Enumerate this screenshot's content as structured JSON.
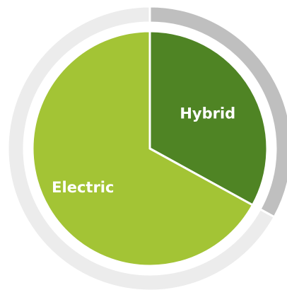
{
  "chart_data": {
    "type": "pie",
    "categories": [
      "Hybrid",
      "Electric"
    ],
    "values": [
      33,
      67
    ],
    "colors": [
      "#4f8424",
      "#a3c435"
    ],
    "ring_colors": [
      "#bfbfbf",
      "#ececec"
    ]
  }
}
